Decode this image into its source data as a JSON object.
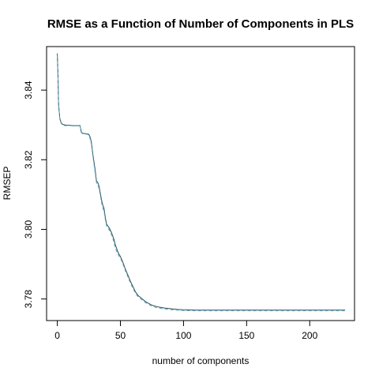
{
  "chart_data": {
    "type": "line",
    "title": "RMSE as a Function of Number of Components in PLS",
    "xlabel": "number of components",
    "ylabel": "RMSEP",
    "xlim": [
      -8.5,
      235.5
    ],
    "ylim": [
      3.7738,
      3.8525
    ],
    "x_ticks": [
      0,
      50,
      100,
      150,
      200
    ],
    "x_tick_labels": [
      "0",
      "50",
      "100",
      "150",
      "200"
    ],
    "y_ticks": [
      3.78,
      3.8,
      3.82,
      3.84
    ],
    "y_tick_labels": [
      "3.78",
      "3.80",
      "3.82",
      "3.84"
    ],
    "grid": false,
    "series": [
      {
        "style": "solid",
        "color": "#2f4f4f",
        "x": [
          0,
          0.5,
          1,
          2,
          3,
          4,
          6,
          8,
          10,
          12,
          15,
          18,
          19,
          20,
          22,
          24,
          25,
          26,
          27,
          28,
          29,
          30,
          31,
          32,
          33,
          34,
          35,
          36,
          37,
          38,
          39,
          40,
          41,
          42,
          43,
          44,
          45,
          46,
          47,
          48,
          49,
          50,
          52,
          54,
          56,
          58,
          60,
          62,
          64,
          66,
          68,
          70,
          72,
          74,
          76,
          78,
          80,
          85,
          90,
          95,
          100,
          110,
          120,
          130,
          150,
          180,
          200,
          228
        ],
        "values": [
          3.8505,
          3.8445,
          3.836,
          3.8318,
          3.8307,
          3.8302,
          3.83,
          3.8299,
          3.8299,
          3.8298,
          3.8298,
          3.8298,
          3.828,
          3.8276,
          3.8275,
          3.8274,
          3.8273,
          3.8265,
          3.825,
          3.822,
          3.8195,
          3.817,
          3.814,
          3.8135,
          3.8125,
          3.8105,
          3.8085,
          3.807,
          3.806,
          3.8035,
          3.8015,
          3.801,
          3.8005,
          3.7998,
          3.799,
          3.798,
          3.797,
          3.7955,
          3.7945,
          3.7935,
          3.7928,
          3.7922,
          3.7905,
          3.7885,
          3.7868,
          3.785,
          3.7835,
          3.782,
          3.781,
          3.7804,
          3.7798,
          3.7792,
          3.7788,
          3.7784,
          3.7781,
          3.7779,
          3.7777,
          3.7774,
          3.7772,
          3.777,
          3.7769,
          3.7768,
          3.7768,
          3.7768,
          3.7768,
          3.7768,
          3.7768,
          3.7768
        ]
      },
      {
        "style": "dashed",
        "color": "#5aa5c8",
        "x": [
          0,
          0.5,
          1,
          2,
          3,
          4,
          6,
          8,
          10,
          12,
          15,
          18,
          19,
          20,
          22,
          24,
          25,
          26,
          27,
          28,
          29,
          30,
          31,
          32,
          33,
          34,
          35,
          36,
          37,
          38,
          39,
          40,
          41,
          42,
          43,
          44,
          45,
          46,
          47,
          48,
          49,
          50,
          52,
          54,
          56,
          58,
          60,
          62,
          64,
          66,
          68,
          70,
          72,
          74,
          76,
          78,
          80,
          85,
          90,
          95,
          100,
          110,
          120,
          130,
          150,
          180,
          200,
          228
        ],
        "values": [
          3.85,
          3.844,
          3.8355,
          3.8315,
          3.8305,
          3.83,
          3.8298,
          3.8298,
          3.8298,
          3.8297,
          3.8297,
          3.8297,
          3.8278,
          3.8275,
          3.8274,
          3.8273,
          3.827,
          3.826,
          3.8244,
          3.8214,
          3.8188,
          3.8162,
          3.8134,
          3.8128,
          3.8118,
          3.8098,
          3.8078,
          3.8062,
          3.8052,
          3.8028,
          3.801,
          3.8004,
          3.7999,
          3.7992,
          3.7984,
          3.7974,
          3.796,
          3.7945,
          3.7937,
          3.7929,
          3.7922,
          3.7918,
          3.79,
          3.788,
          3.7863,
          3.7845,
          3.783,
          3.7816,
          3.7806,
          3.78,
          3.7795,
          3.7789,
          3.7785,
          3.7781,
          3.7778,
          3.7776,
          3.7774,
          3.7771,
          3.7769,
          3.7768,
          3.7767,
          3.7766,
          3.7766,
          3.7766,
          3.7766,
          3.7766,
          3.7766,
          3.7766
        ]
      }
    ]
  }
}
